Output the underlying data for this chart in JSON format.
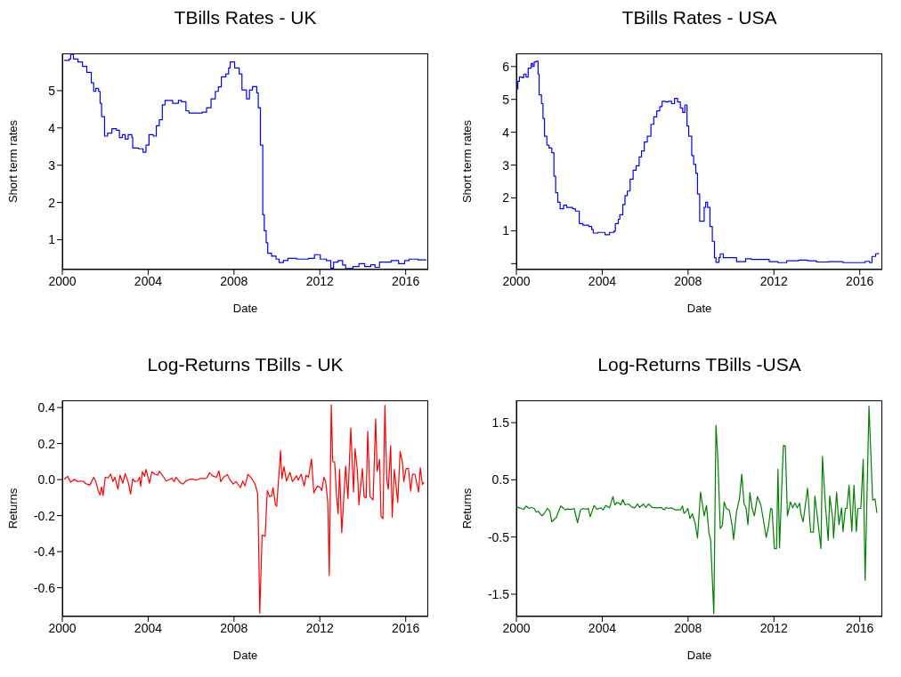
{
  "chart_data": [
    {
      "type": "step",
      "title": "TBills Rates - UK",
      "xlabel": "Date",
      "ylabel": "Short term rates",
      "xlim": [
        2000,
        2017.05
      ],
      "xticks": [
        2000,
        2004,
        2008,
        2012,
        2016
      ],
      "ylim": [
        0.2,
        6.0
      ],
      "yticks": [
        1,
        2,
        3,
        4,
        5
      ],
      "series": [
        {
          "color": "#0000ff",
          "x": [
            2000.08,
            2000.32,
            2000.39,
            2000.52,
            2000.73,
            2000.94,
            2001.14,
            2001.35,
            2001.46,
            2001.56,
            2001.69,
            2001.76,
            2001.83,
            2001.97,
            2002.11,
            2002.31,
            2002.52,
            2002.66,
            2002.8,
            2002.93,
            2003.07,
            2003.24,
            2003.28,
            2003.55,
            2003.76,
            2003.9,
            2004.04,
            2004.24,
            2004.38,
            2004.52,
            2004.66,
            2004.79,
            2005.14,
            2005.41,
            2005.55,
            2005.76,
            2005.9,
            2006.52,
            2006.72,
            2006.93,
            2007.13,
            2007.27,
            2007.41,
            2007.62,
            2007.75,
            2007.82,
            2008.03,
            2008.24,
            2008.37,
            2008.58,
            2008.72,
            2008.86,
            2009.06,
            2009.13,
            2009.23,
            2009.34,
            2009.41,
            2009.5,
            2009.57,
            2009.75,
            2009.96,
            2010.1,
            2010.3,
            2010.51,
            2010.92,
            2011.47,
            2011.75,
            2012.02,
            2012.3,
            2012.51,
            2012.64,
            2012.85,
            2013.06,
            2013.2,
            2013.54,
            2013.82,
            2014.09,
            2014.37,
            2014.57,
            2014.78,
            2015.06,
            2015.33,
            2015.67,
            2015.95,
            2016.16,
            2016.57,
            2016.96
          ],
          "values": [
            5.81,
            5.85,
            5.97,
            5.85,
            5.77,
            5.65,
            5.49,
            5.21,
            4.98,
            5.06,
            4.98,
            4.66,
            4.3,
            3.78,
            3.86,
            3.98,
            3.94,
            3.74,
            3.82,
            3.7,
            3.82,
            3.74,
            3.46,
            3.44,
            3.35,
            3.54,
            3.82,
            3.78,
            4.06,
            4.22,
            4.62,
            4.74,
            4.66,
            4.74,
            4.7,
            4.46,
            4.4,
            4.42,
            4.54,
            4.78,
            4.98,
            5.1,
            5.37,
            5.45,
            5.61,
            5.77,
            5.61,
            5.45,
            5.02,
            4.78,
            5.02,
            5.11,
            4.94,
            4.54,
            3.54,
            1.67,
            1.24,
            0.92,
            0.64,
            0.56,
            0.48,
            0.39,
            0.44,
            0.5,
            0.48,
            0.5,
            0.6,
            0.48,
            0.44,
            0.24,
            0.4,
            0.44,
            0.32,
            0.23,
            0.28,
            0.36,
            0.28,
            0.33,
            0.26,
            0.4,
            0.4,
            0.44,
            0.36,
            0.44,
            0.48,
            0.46,
            0.46
          ]
        }
      ]
    },
    {
      "type": "step",
      "title": "TBills Rates - USA",
      "xlabel": "Date",
      "ylabel": "Short term rates",
      "xlim": [
        2000,
        2017.05
      ],
      "xticks": [
        2000,
        2004,
        2008,
        2012,
        2016
      ],
      "ylim": [
        -0.18,
        6.4
      ],
      "yticks": [
        {
          "value": 0,
          "label": null
        },
        1,
        2,
        3,
        4,
        5,
        6
      ],
      "series": [
        {
          "color": "#0000ff",
          "x": [
            2000.0,
            2000.07,
            2000.14,
            2000.28,
            2000.34,
            2000.45,
            2000.55,
            2000.69,
            2000.76,
            2000.83,
            2000.92,
            2001.01,
            2001.06,
            2001.17,
            2001.24,
            2001.31,
            2001.42,
            2001.52,
            2001.65,
            2001.75,
            2001.83,
            2001.93,
            2002.04,
            2002.2,
            2002.34,
            2002.62,
            2002.75,
            2002.93,
            2003.1,
            2003.37,
            2003.51,
            2003.58,
            2003.79,
            2004.13,
            2004.34,
            2004.55,
            2004.61,
            2004.75,
            2004.82,
            2004.96,
            2005.06,
            2005.17,
            2005.3,
            2005.44,
            2005.58,
            2005.72,
            2005.83,
            2005.96,
            2006.1,
            2006.27,
            2006.4,
            2006.54,
            2006.68,
            2006.79,
            2006.96,
            2007.07,
            2007.23,
            2007.37,
            2007.51,
            2007.64,
            2007.75,
            2007.85,
            2007.95,
            2008.03,
            2008.17,
            2008.26,
            2008.36,
            2008.44,
            2008.54,
            2008.68,
            2008.75,
            2008.82,
            2008.91,
            2009.02,
            2009.13,
            2009.23,
            2009.3,
            2009.44,
            2009.5,
            2009.64,
            2010.06,
            2010.26,
            2010.47,
            2010.68,
            2010.95,
            2011.5,
            2011.78,
            2012.19,
            2012.6,
            2013.15,
            2013.57,
            2013.98,
            2014.53,
            2015.22,
            2015.91,
            2016.25,
            2016.46,
            2016.57,
            2016.74,
            2016.87
          ],
          "values": [
            5.32,
            5.55,
            5.68,
            5.66,
            5.77,
            5.68,
            5.95,
            6.09,
            6.0,
            6.14,
            6.16,
            5.77,
            5.14,
            4.87,
            4.42,
            3.88,
            3.61,
            3.52,
            3.38,
            2.66,
            2.16,
            1.87,
            1.67,
            1.78,
            1.71,
            1.67,
            1.6,
            1.22,
            1.17,
            1.13,
            1.04,
            0.93,
            0.95,
            0.88,
            0.95,
            0.99,
            1.22,
            1.35,
            1.49,
            1.8,
            2.07,
            2.21,
            2.57,
            2.84,
            2.98,
            3.25,
            3.43,
            3.7,
            3.88,
            4.24,
            4.47,
            4.65,
            4.78,
            4.94,
            4.92,
            4.94,
            4.87,
            5.03,
            4.92,
            4.74,
            4.6,
            4.83,
            4.19,
            3.88,
            3.29,
            3.02,
            2.75,
            2.12,
            1.29,
            1.29,
            1.71,
            1.87,
            1.71,
            1.13,
            0.68,
            0.18,
            0.04,
            0.18,
            0.3,
            0.18,
            0.18,
            0.06,
            0.06,
            0.15,
            0.13,
            0.13,
            0.06,
            0.03,
            0.09,
            0.11,
            0.09,
            0.05,
            0.06,
            0.03,
            0.03,
            0.07,
            0.03,
            0.22,
            0.3,
            0.33
          ]
        }
      ]
    },
    {
      "type": "line",
      "title": "Log-Returns TBills - UK",
      "xlabel": "Date",
      "ylabel": "Returns",
      "xlim": [
        2000,
        2017.05
      ],
      "xticks": [
        2000,
        2004,
        2008,
        2012,
        2016
      ],
      "ylim": [
        -0.76,
        0.44
      ],
      "yticks": [
        -0.6,
        -0.4,
        -0.2,
        {
          "value": 0,
          "label": "0.0"
        },
        0.2,
        0.4
      ],
      "series": [
        {
          "color": "#ff0000",
          "x": [
            2000.08,
            2000.25,
            2000.39,
            2000.56,
            2000.7,
            2000.87,
            2001.01,
            2001.07,
            2001.28,
            2001.46,
            2001.56,
            2001.69,
            2001.76,
            2001.83,
            2001.9,
            2002.0,
            2002.13,
            2002.25,
            2002.36,
            2002.45,
            2002.59,
            2002.69,
            2002.82,
            2002.93,
            2003.07,
            2003.18,
            2003.28,
            2003.37,
            2003.51,
            2003.6,
            2003.65,
            2003.73,
            2003.83,
            2003.9,
            2004.06,
            2004.17,
            2004.31,
            2004.45,
            2004.52,
            2004.66,
            2004.84,
            2004.93,
            2005.11,
            2005.21,
            2005.3,
            2005.48,
            2005.62,
            2005.76,
            2005.94,
            2006.1,
            2006.24,
            2006.45,
            2006.58,
            2006.72,
            2006.86,
            2007.0,
            2007.18,
            2007.3,
            2007.38,
            2007.51,
            2007.69,
            2007.82,
            2007.96,
            2008.09,
            2008.3,
            2008.41,
            2008.51,
            2008.65,
            2008.83,
            2008.99,
            2009.1,
            2009.13,
            2009.2,
            2009.31,
            2009.45,
            2009.55,
            2009.66,
            2009.75,
            2009.82,
            2009.93,
            2009.99,
            2010.17,
            2010.23,
            2010.33,
            2010.44,
            2010.61,
            2010.72,
            2010.92,
            2010.99,
            2011.13,
            2011.27,
            2011.36,
            2011.47,
            2011.61,
            2011.72,
            2011.89,
            2012.02,
            2012.09,
            2012.19,
            2012.27,
            2012.37,
            2012.44,
            2012.53,
            2012.6,
            2012.69,
            2012.78,
            2012.85,
            2012.92,
            2013.02,
            2013.2,
            2013.31,
            2013.44,
            2013.57,
            2013.64,
            2013.75,
            2013.82,
            2013.98,
            2014.06,
            2014.16,
            2014.23,
            2014.34,
            2014.48,
            2014.6,
            2014.67,
            2014.78,
            2014.85,
            2014.94,
            2015.03,
            2015.12,
            2015.19,
            2015.3,
            2015.37,
            2015.47,
            2015.63,
            2015.74,
            2015.85,
            2015.91,
            2016.02,
            2016.13,
            2016.23,
            2016.32,
            2016.43,
            2016.6,
            2016.68,
            2016.78,
            2016.85
          ],
          "values": [
            0.002,
            0.018,
            -0.015,
            0.002,
            -0.011,
            -0.008,
            -0.011,
            -0.021,
            -0.031,
            0.013,
            -0.011,
            -0.069,
            -0.085,
            -0.041,
            -0.089,
            0.013,
            0.01,
            0.03,
            -0.011,
            0.013,
            -0.053,
            0.025,
            -0.02,
            0.033,
            -0.015,
            -0.08,
            0.005,
            -0.011,
            -0.008,
            0.013,
            -0.038,
            0.044,
            0.018,
            0.057,
            -0.02,
            0.044,
            0.03,
            0.025,
            0.046,
            0.025,
            -0.008,
            -0.003,
            0.008,
            -0.011,
            0.013,
            -0.015,
            -0.025,
            -0.008,
            0.002,
            0.002,
            -0.003,
            0.008,
            0.005,
            0.008,
            0.038,
            0.021,
            0.013,
            0.048,
            -0.011,
            0.013,
            0.028,
            -0.003,
            -0.025,
            -0.011,
            -0.044,
            -0.008,
            -0.036,
            0.03,
            0.005,
            -0.028,
            -0.077,
            -0.225,
            -0.742,
            -0.307,
            -0.315,
            -0.061,
            -0.094,
            -0.09,
            -0.044,
            -0.14,
            -0.148,
            0.161,
            0.005,
            0.071,
            -0.008,
            0.041,
            -0.011,
            0.021,
            -0.003,
            0.03,
            -0.036,
            0.025,
            0.013,
            0.115,
            -0.074,
            -0.036,
            -0.044,
            -0.061,
            0.013,
            -0.011,
            -0.126,
            -0.532,
            0.415,
            0.1,
            0.097,
            -0.094,
            -0.189,
            0.057,
            -0.294,
            0.074,
            -0.105,
            0.287,
            -0.069,
            0.172,
            0.046,
            -0.14,
            0.062,
            -0.094,
            -0.102,
            0.268,
            -0.094,
            -0.113,
            0.337,
            0.046,
            0.112,
            -0.205,
            -0.217,
            0.412,
            -0.003,
            -0.053,
            0.189,
            -0.209,
            0.057,
            -0.126,
            0.156,
            0.095,
            -0.011,
            0.062,
            0.062,
            -0.064,
            0.03,
            0.03,
            -0.069,
            0.066,
            -0.028,
            -0.015
          ]
        }
      ]
    },
    {
      "type": "line",
      "title": "Log-Returns TBills -USA",
      "xlabel": "Date",
      "ylabel": "Returns",
      "xlim": [
        2000,
        2017.05
      ],
      "xticks": [
        2000,
        2004,
        2008,
        2012,
        2016
      ],
      "ylim": [
        -1.89,
        1.89
      ],
      "yticks": [
        -1.5,
        -0.5,
        0.5,
        1.5
      ],
      "series": [
        {
          "color": "#008000",
          "x": [
            2000.0,
            2000.14,
            2000.23,
            2000.34,
            2000.45,
            2000.59,
            2000.69,
            2000.83,
            2000.92,
            2001.03,
            2001.1,
            2001.2,
            2001.31,
            2001.45,
            2001.56,
            2001.65,
            2001.86,
            2002.07,
            2002.27,
            2002.38,
            2002.58,
            2002.69,
            2002.85,
            2002.99,
            2003.1,
            2003.24,
            2003.35,
            2003.44,
            2003.62,
            2003.76,
            2003.93,
            2004.04,
            2004.17,
            2004.34,
            2004.5,
            2004.59,
            2004.68,
            2004.78,
            2004.86,
            2004.96,
            2005.06,
            2005.23,
            2005.37,
            2005.51,
            2005.65,
            2005.74,
            2005.92,
            2006.03,
            2006.16,
            2006.34,
            2006.54,
            2006.75,
            2006.89,
            2006.98,
            2007.09,
            2007.23,
            2007.41,
            2007.64,
            2007.74,
            2007.81,
            2007.89,
            2007.99,
            2008.09,
            2008.2,
            2008.33,
            2008.44,
            2008.58,
            2008.75,
            2008.86,
            2008.97,
            2009.05,
            2009.2,
            2009.3,
            2009.39,
            2009.5,
            2009.6,
            2009.68,
            2009.78,
            2009.92,
            2010.06,
            2010.12,
            2010.26,
            2010.4,
            2010.5,
            2010.61,
            2010.7,
            2010.79,
            2010.88,
            2010.98,
            2011.09,
            2011.23,
            2011.29,
            2011.39,
            2011.53,
            2011.64,
            2011.75,
            2011.85,
            2011.91,
            2012.02,
            2012.12,
            2012.19,
            2012.26,
            2012.44,
            2012.53,
            2012.63,
            2012.77,
            2012.88,
            2012.98,
            2013.09,
            2013.2,
            2013.26,
            2013.36,
            2013.57,
            2013.71,
            2013.84,
            2013.91,
            2014.05,
            2014.19,
            2014.26,
            2014.39,
            2014.53,
            2014.6,
            2014.74,
            2014.78,
            2014.92,
            2015.03,
            2015.15,
            2015.22,
            2015.33,
            2015.4,
            2015.5,
            2015.63,
            2015.73,
            2015.84,
            2015.91,
            2016.05,
            2016.16,
            2016.25,
            2016.43,
            2016.6,
            2016.71,
            2016.8
          ],
          "values": [
            0.026,
            0.01,
            0,
            -0.016,
            0.042,
            0,
            0.016,
            0,
            -0.062,
            -0.052,
            -0.093,
            -0.13,
            -0.078,
            0,
            -0.052,
            -0.234,
            -0.156,
            0.042,
            -0.026,
            -0.01,
            -0.016,
            0,
            -0.249,
            -0.026,
            0,
            -0.016,
            0,
            -0.145,
            0.052,
            -0.016,
            0.01,
            -0.026,
            0.052,
            0.01,
            0.208,
            0.062,
            0.104,
            0.093,
            0.062,
            0.156,
            0.062,
            0.078,
            0.026,
            0.01,
            0.078,
            0.016,
            0.078,
            0.016,
            0.078,
            0.016,
            0.01,
            0.016,
            -0.026,
            0.016,
            0,
            0.01,
            -0.026,
            -0.026,
            0.042,
            -0.088,
            -0.062,
            0,
            -0.176,
            -0.093,
            -0.259,
            -0.519,
            0.285,
            -0.13,
            0.052,
            -0.426,
            -0.545,
            -1.842,
            1.453,
            0.841,
            -0.353,
            -0.296,
            0.114,
            0,
            -0.026,
            -0.311,
            -0.545,
            -0.052,
            0.182,
            0.597,
            0.078,
            0.01,
            -0.285,
            0.28,
            0.01,
            -0.13,
            0.208,
            0.156,
            0.062,
            -0.249,
            -0.509,
            -0.311,
            0,
            -0.01,
            -0.701,
            -0.701,
            0.685,
            -0.69,
            1.1,
            1.09,
            -0.13,
            0.114,
            0.01,
            0.093,
            0.01,
            0.093,
            -0.104,
            -0.234,
            0.353,
            -0.415,
            -0.415,
            0.218,
            -0.234,
            -0.701,
            0.908,
            0.104,
            -0.56,
            0.218,
            -0.182,
            -0.519,
            0.285,
            -0.285,
            0.01,
            -0.405,
            0,
            0,
            0.405,
            -0.405,
            0.405,
            -0.405,
            0,
            0,
            0.856,
            -1.256,
            1.79,
            0.145,
            0.166,
            -0.078
          ]
        }
      ]
    }
  ]
}
